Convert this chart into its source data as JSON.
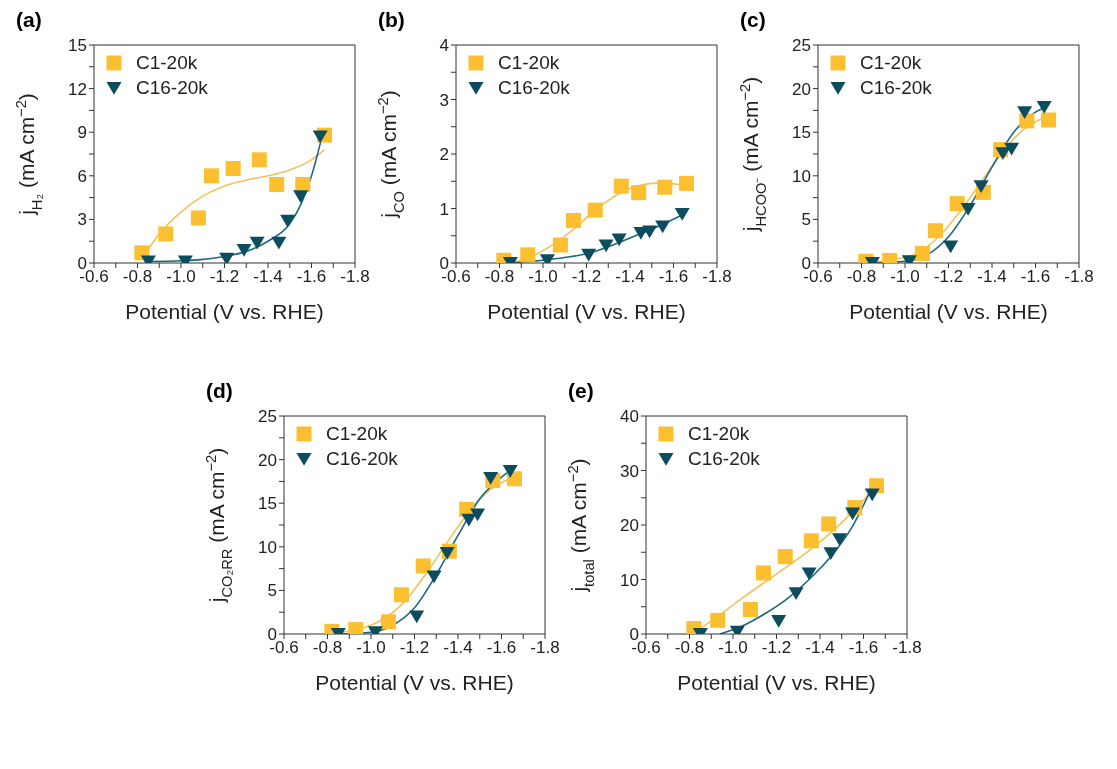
{
  "chart_data": [
    {
      "type": "scatter",
      "title": "(a)",
      "xlabel": "Potential (V vs. RHE)",
      "ylabel": "j$_{H₂}$ (mA cm$^{−2}$)",
      "xlim": [
        -0.6,
        -1.8
      ],
      "xticks": [
        -0.6,
        {
          "value": -0.7,
          "label": null
        },
        -0.8,
        {
          "value": -0.9,
          "label": null
        },
        {
          "value": -1,
          "label": "-1.0"
        },
        {
          "value": -1.1,
          "label": null
        },
        -1.2,
        {
          "value": -1.3,
          "label": null
        },
        -1.4,
        {
          "value": -1.5,
          "label": null
        },
        -1.6,
        {
          "value": -1.7,
          "label": null
        },
        -1.8
      ],
      "ylim": [
        0,
        15
      ],
      "yticks": [
        0,
        {
          "value": 1.5,
          "label": null
        },
        3,
        {
          "value": 4.5,
          "label": null
        },
        6,
        {
          "value": 7.5,
          "label": null
        },
        9,
        {
          "value": 10.5,
          "label": null
        },
        12,
        {
          "value": 13.5,
          "label": null
        },
        15
      ],
      "legend": "top left",
      "series": [
        {
          "type": "line",
          "color": "#f2c25a",
          "marker": "none",
          "x": [
            -0.83,
            -0.9,
            -1.0,
            -1.1,
            -1.2,
            -1.3,
            -1.4,
            -1.5,
            -1.6,
            -1.66
          ],
          "values": [
            0.5,
            2.0,
            3.5,
            4.6,
            5.3,
            5.7,
            6.0,
            6.4,
            7.1,
            7.8
          ]
        },
        {
          "type": "line",
          "color": "#1d6a80",
          "marker": "none",
          "x": [
            -0.85,
            -1.0,
            -1.1,
            -1.2,
            -1.3,
            -1.4,
            -1.5,
            -1.55,
            -1.6,
            -1.65
          ],
          "values": [
            0.1,
            0.15,
            0.25,
            0.45,
            0.8,
            1.5,
            2.7,
            4.0,
            6.0,
            8.8
          ]
        },
        {
          "name": "C1-20k",
          "color": "#fbbf30",
          "marker": "square",
          "x": [
            -0.82,
            -0.93,
            -1.08,
            -1.14,
            -1.24,
            -1.36,
            -1.44,
            -1.56,
            -1.66
          ],
          "values": [
            0.7,
            2.0,
            3.1,
            6.0,
            6.5,
            7.1,
            5.4,
            5.4,
            8.8
          ]
        },
        {
          "name": "C16-20k",
          "color": "#0b4d5e",
          "marker": "triangle",
          "x": [
            -0.85,
            -1.02,
            -1.21,
            -1.29,
            -1.35,
            -1.45,
            -1.49,
            -1.55,
            -1.64
          ],
          "values": [
            0.1,
            0.1,
            0.3,
            0.9,
            1.4,
            1.4,
            2.9,
            4.6,
            8.7
          ]
        }
      ]
    },
    {
      "type": "scatter",
      "title": "(b)",
      "xlabel": "Potential (V vs. RHE)",
      "ylabel": "j$_{CO}$ (mA cm$^{−2}$)",
      "xlim": [
        -0.6,
        -1.8
      ],
      "xticks": [
        -0.6,
        {
          "value": -0.7,
          "label": null
        },
        -0.8,
        {
          "value": -0.9,
          "label": null
        },
        {
          "value": -1,
          "label": "-1.0"
        },
        {
          "value": -1.1,
          "label": null
        },
        -1.2,
        {
          "value": -1.3,
          "label": null
        },
        -1.4,
        {
          "value": -1.5,
          "label": null
        },
        -1.6,
        {
          "value": -1.7,
          "label": null
        },
        -1.8
      ],
      "ylim": [
        0,
        4
      ],
      "yticks": [
        0,
        {
          "value": 0.5,
          "label": null
        },
        1,
        {
          "value": 1.5,
          "label": null
        },
        2,
        {
          "value": 2.5,
          "label": null
        },
        3,
        {
          "value": 3.5,
          "label": null
        },
        4
      ],
      "legend": "top left",
      "series": [
        {
          "type": "line",
          "color": "#f2c25a",
          "marker": "none",
          "x": [
            -0.85,
            -0.95,
            -1.05,
            -1.15,
            -1.25,
            -1.35,
            -1.45,
            -1.55,
            -1.65
          ],
          "values": [
            0.0,
            0.12,
            0.35,
            0.65,
            1.0,
            1.27,
            1.43,
            1.47,
            1.42
          ]
        },
        {
          "type": "line",
          "color": "#1d6a80",
          "marker": "none",
          "x": [
            -0.85,
            -1.0,
            -1.1,
            -1.2,
            -1.3,
            -1.4,
            -1.5,
            -1.64
          ],
          "values": [
            0.0,
            0.05,
            0.1,
            0.17,
            0.3,
            0.46,
            0.62,
            0.88
          ]
        },
        {
          "name": "C1-20k",
          "color": "#fbbf30",
          "marker": "square",
          "x": [
            -0.82,
            -0.93,
            -1.08,
            -1.14,
            -1.24,
            -1.36,
            -1.44,
            -1.56,
            -1.66
          ],
          "values": [
            0.05,
            0.15,
            0.33,
            0.78,
            0.97,
            1.41,
            1.29,
            1.39,
            1.46
          ]
        },
        {
          "name": "C16-20k",
          "color": "#0b4d5e",
          "marker": "triangle",
          "x": [
            -0.85,
            -1.02,
            -1.21,
            -1.29,
            -1.35,
            -1.45,
            -1.49,
            -1.55,
            -1.64
          ],
          "values": [
            0.0,
            0.05,
            0.15,
            0.32,
            0.43,
            0.55,
            0.58,
            0.67,
            0.9
          ]
        }
      ]
    },
    {
      "type": "scatter",
      "title": "(c)",
      "xlabel": "Potential (V vs. RHE)",
      "ylabel": "j$_{HCOO⁻}$ (mA cm$^{−2}$)",
      "xlim": [
        -0.6,
        -1.8
      ],
      "xticks": [
        -0.6,
        {
          "value": -0.7,
          "label": null
        },
        -0.8,
        {
          "value": -0.9,
          "label": null
        },
        {
          "value": -1,
          "label": "-1.0"
        },
        {
          "value": -1.1,
          "label": null
        },
        -1.2,
        {
          "value": -1.3,
          "label": null
        },
        -1.4,
        {
          "value": -1.5,
          "label": null
        },
        -1.6,
        {
          "value": -1.7,
          "label": null
        },
        -1.8
      ],
      "ylim": [
        0,
        25
      ],
      "yticks": [
        0,
        {
          "value": 2.5,
          "label": null
        },
        5,
        {
          "value": 7.5,
          "label": null
        },
        10,
        {
          "value": 12.5,
          "label": null
        },
        15,
        {
          "value": 17.5,
          "label": null
        },
        20,
        {
          "value": 22.5,
          "label": null
        },
        25
      ],
      "legend": "top left",
      "series": [
        {
          "type": "line",
          "color": "#f2c25a",
          "marker": "none",
          "x": [
            -0.82,
            -0.95,
            -1.05,
            -1.15,
            -1.25,
            -1.35,
            -1.45,
            -1.55,
            -1.65
          ],
          "values": [
            0.1,
            0.4,
            1.1,
            2.9,
            5.8,
            9.3,
            12.8,
            15.4,
            16.8
          ]
        },
        {
          "type": "line",
          "color": "#1d6a80",
          "marker": "none",
          "x": [
            -0.85,
            -1.0,
            -1.1,
            -1.2,
            -1.3,
            -1.4,
            -1.5,
            -1.6,
            -1.64
          ],
          "values": [
            0.0,
            0.2,
            0.9,
            3.0,
            6.6,
            11.0,
            15.0,
            17.3,
            17.8
          ]
        },
        {
          "name": "C1-20k",
          "color": "#fbbf30",
          "marker": "square",
          "x": [
            -0.82,
            -0.93,
            -1.08,
            -1.14,
            -1.24,
            -1.36,
            -1.44,
            -1.56,
            -1.66
          ],
          "values": [
            0.2,
            0.3,
            1.1,
            3.7,
            6.8,
            8.1,
            13.0,
            16.3,
            16.4
          ]
        },
        {
          "name": "C16-20k",
          "color": "#0b4d5e",
          "marker": "triangle",
          "x": [
            -0.85,
            -1.02,
            -1.21,
            -1.29,
            -1.35,
            -1.45,
            -1.49,
            -1.55,
            -1.64
          ],
          "values": [
            0.0,
            0.2,
            1.9,
            6.2,
            8.8,
            12.6,
            13.1,
            17.3,
            17.9
          ]
        }
      ]
    },
    {
      "type": "scatter",
      "title": "(d)",
      "xlabel": "Potential (V vs. RHE)",
      "ylabel": "j$_{CO₂RR}$ (mA cm$^{−2}$)",
      "xlim": [
        -0.6,
        -1.8
      ],
      "xticks": [
        -0.6,
        {
          "value": -0.7,
          "label": null
        },
        -0.8,
        {
          "value": -0.9,
          "label": null
        },
        {
          "value": -1,
          "label": "-1.0"
        },
        {
          "value": -1.1,
          "label": null
        },
        -1.2,
        {
          "value": -1.3,
          "label": null
        },
        -1.4,
        {
          "value": -1.5,
          "label": null
        },
        -1.6,
        {
          "value": -1.7,
          "label": null
        },
        -1.8
      ],
      "ylim": [
        0,
        25
      ],
      "yticks": [
        0,
        {
          "value": 2.5,
          "label": null
        },
        5,
        {
          "value": 7.5,
          "label": null
        },
        10,
        {
          "value": 12.5,
          "label": null
        },
        15,
        {
          "value": 17.5,
          "label": null
        },
        20,
        {
          "value": 22.5,
          "label": null
        },
        25
      ],
      "legend": "top left",
      "series": [
        {
          "type": "line",
          "color": "#f2c25a",
          "marker": "none",
          "x": [
            -0.82,
            -0.95,
            -1.05,
            -1.15,
            -1.25,
            -1.35,
            -1.45,
            -1.55,
            -1.65
          ],
          "values": [
            0.1,
            0.6,
            1.6,
            3.6,
            6.8,
            10.5,
            14.0,
            16.6,
            17.9
          ]
        },
        {
          "type": "line",
          "color": "#1d6a80",
          "marker": "none",
          "x": [
            -0.85,
            -1.0,
            -1.1,
            -1.2,
            -1.3,
            -1.4,
            -1.5,
            -1.6,
            -1.64
          ],
          "values": [
            0.0,
            0.2,
            1.0,
            3.0,
            6.8,
            11.3,
            15.5,
            18.0,
            18.7
          ]
        },
        {
          "name": "C1-20k",
          "color": "#fbbf30",
          "marker": "square",
          "x": [
            -0.82,
            -0.93,
            -1.08,
            -1.14,
            -1.24,
            -1.36,
            -1.44,
            -1.56,
            -1.66
          ],
          "values": [
            0.3,
            0.5,
            1.4,
            4.5,
            7.8,
            9.5,
            14.3,
            17.6,
            17.8
          ]
        },
        {
          "name": "C16-20k",
          "color": "#0b4d5e",
          "marker": "triangle",
          "x": [
            -0.85,
            -1.02,
            -1.21,
            -1.29,
            -1.35,
            -1.45,
            -1.49,
            -1.55,
            -1.64
          ],
          "values": [
            0.0,
            0.2,
            2.0,
            6.6,
            9.3,
            13.1,
            13.7,
            17.9,
            18.7
          ]
        }
      ]
    },
    {
      "type": "scatter",
      "title": "(e)",
      "xlabel": "Potential (V vs. RHE)",
      "ylabel": "j$_{total}$ (mA cm$^{−2}$)",
      "xlim": [
        -0.6,
        -1.8
      ],
      "xticks": [
        -0.6,
        {
          "value": -0.7,
          "label": null
        },
        -0.8,
        {
          "value": -0.9,
          "label": null
        },
        {
          "value": -1,
          "label": "-1.0"
        },
        {
          "value": -1.1,
          "label": null
        },
        -1.2,
        {
          "value": -1.3,
          "label": null
        },
        -1.4,
        {
          "value": -1.5,
          "label": null
        },
        -1.6,
        {
          "value": -1.7,
          "label": null
        },
        -1.8
      ],
      "ylim": [
        0,
        40
      ],
      "yticks": [
        0,
        {
          "value": 5,
          "label": null
        },
        10,
        {
          "value": 15,
          "label": null
        },
        20,
        {
          "value": 25,
          "label": null
        },
        30,
        {
          "value": 35,
          "label": null
        },
        40
      ],
      "legend": "top left",
      "series": [
        {
          "type": "line",
          "color": "#f2c25a",
          "marker": "none",
          "x": [
            -0.83,
            -0.95,
            -1.05,
            -1.15,
            -1.25,
            -1.35,
            -1.45,
            -1.55,
            -1.65
          ],
          "values": [
            0.5,
            3.8,
            6.8,
            9.6,
            12.4,
            15.3,
            18.6,
            22.4,
            26.8
          ]
        },
        {
          "type": "line",
          "color": "#1d6a80",
          "marker": "none",
          "x": [
            -0.94,
            -1.05,
            -1.15,
            -1.25,
            -1.35,
            -1.45,
            -1.55,
            -1.64
          ],
          "values": [
            0.0,
            1.6,
            3.8,
            6.5,
            10.0,
            14.2,
            19.8,
            27.0
          ]
        },
        {
          "name": "C1-20k",
          "color": "#fbbf30",
          "marker": "square",
          "x": [
            -0.82,
            -0.93,
            -1.08,
            -1.14,
            -1.24,
            -1.36,
            -1.44,
            -1.56,
            -1.66
          ],
          "values": [
            1.0,
            2.5,
            4.5,
            11.2,
            14.2,
            17.1,
            20.2,
            23.2,
            27.2
          ]
        },
        {
          "name": "C16-20k",
          "color": "#0b4d5e",
          "marker": "triangle",
          "x": [
            -0.85,
            -1.02,
            -1.21,
            -1.29,
            -1.35,
            -1.45,
            -1.49,
            -1.55,
            -1.64
          ],
          "values": [
            0.0,
            0.4,
            2.4,
            7.5,
            11.1,
            14.8,
            17.4,
            22.1,
            25.6
          ]
        }
      ]
    }
  ]
}
